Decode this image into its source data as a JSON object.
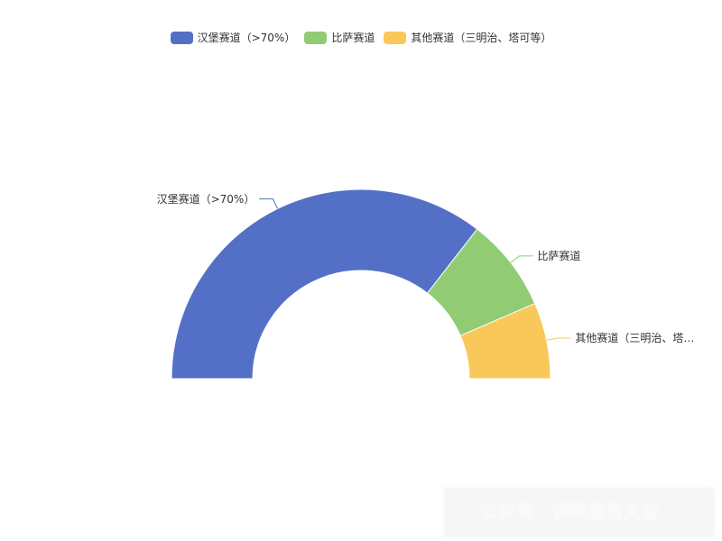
{
  "chart_data": {
    "type": "half-donut",
    "series": [
      {
        "name": "汉堡赛道（>70%）",
        "color": "#5470c6",
        "value": 71
      },
      {
        "name": "比萨赛道",
        "color": "#91cc75",
        "value": 16
      },
      {
        "name": "其他赛道（三明治、塔可等）",
        "color": "#fac858",
        "value": 13
      }
    ],
    "watermark": "公众号 · 调研报告大全"
  }
}
